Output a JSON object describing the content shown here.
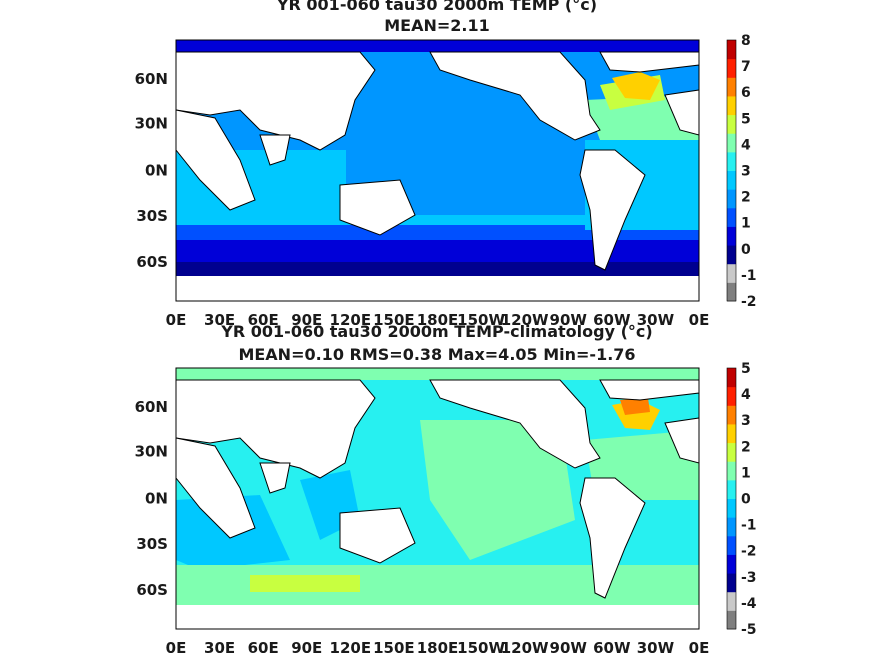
{
  "chart_data": [
    {
      "type": "heatmap",
      "title": "YR 001-060 tau30 2000m TEMP (°c)",
      "subtitle": "MEAN=2.11",
      "x_ticks": [
        "0E",
        "30E",
        "60E",
        "90E",
        "120E",
        "150E",
        "180E",
        "150W",
        "120W",
        "90W",
        "60W",
        "30W",
        "0E"
      ],
      "y_ticks": [
        "60N",
        "30N",
        "0N",
        "30S",
        "60S"
      ],
      "colorbar_ticks": [
        "8",
        "7",
        "6",
        "5",
        "4",
        "3",
        "2",
        "1",
        "0",
        "-1",
        "-2"
      ],
      "colorbar_range": [
        -2,
        8
      ],
      "mean": 2.11,
      "palette": [
        "#7f7f7f",
        "#c9c9c9",
        "#00008f",
        "#0000d8",
        "#0050ff",
        "#0096ff",
        "#00c8ff",
        "#27f0f0",
        "#7fffb0",
        "#c8ff40",
        "#ffd000",
        "#ff8000",
        "#ff2000",
        "#c00000"
      ]
    },
    {
      "type": "heatmap",
      "title": "YR 001-060 tau30 2000m TEMP-climatology (°c)",
      "subtitle": "MEAN=0.10   RMS=0.38   Max=4.05   Min=-1.76",
      "x_ticks": [
        "0E",
        "30E",
        "60E",
        "90E",
        "120E",
        "150E",
        "180E",
        "150W",
        "120W",
        "90W",
        "60W",
        "30W",
        "0E"
      ],
      "y_ticks": [
        "60N",
        "30N",
        "0N",
        "30S",
        "60S"
      ],
      "colorbar_ticks": [
        "5",
        "4",
        "3",
        "2",
        "1",
        "0",
        "-1",
        "-2",
        "-3",
        "-4",
        "-5"
      ],
      "colorbar_range": [
        -5,
        5
      ],
      "mean": 0.1,
      "rms": 0.38,
      "max": 4.05,
      "min": -1.76,
      "palette": [
        "#7f7f7f",
        "#c9c9c9",
        "#00008f",
        "#0000d8",
        "#0050ff",
        "#0096ff",
        "#00c8ff",
        "#27f0f0",
        "#7fffb0",
        "#c8ff40",
        "#ffd000",
        "#ff8000",
        "#ff2000",
        "#c00000"
      ]
    }
  ]
}
